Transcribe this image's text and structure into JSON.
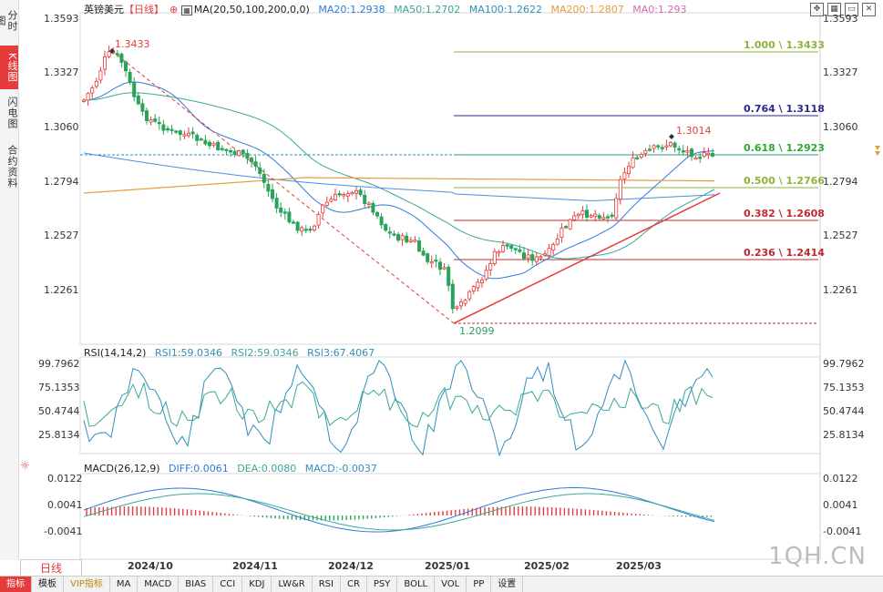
{
  "sidebar": {
    "tabs": [
      {
        "label": "分时图",
        "active": false
      },
      {
        "label": "K线图",
        "active": true
      },
      {
        "label": "闪电图",
        "active": false
      },
      {
        "label": "合约资料",
        "active": false
      }
    ]
  },
  "header": {
    "symbol": "英镑美元",
    "period_tag": "【日线】",
    "ma_spec": "MA(20,50,100,200,0,0)",
    "ma20": "MA20:1.2938",
    "ma50": "MA50:1.2702",
    "ma100": "MA100:1.2622",
    "ma200": "MA200:1.2807",
    "ma0": "MA0:1.293"
  },
  "price_axis": {
    "left": [
      "1.3593",
      "1.3327",
      "1.3060",
      "1.2794",
      "1.2527",
      "1.2261"
    ],
    "right": [
      "1.3593",
      "1.3327",
      "1.3060",
      "1.2794",
      "1.2527",
      "1.2261"
    ]
  },
  "annotations": {
    "high": "1.3433",
    "low": "1.2099",
    "recent_high": "1.3014"
  },
  "fib_levels": [
    {
      "label": "1.000 \\ 1.3433",
      "color": "#8db33a"
    },
    {
      "label": "0.764 \\ 1.3118",
      "color": "#2a2a8a"
    },
    {
      "label": "0.618 \\ 1.2923",
      "color": "#31a831"
    },
    {
      "label": "0.500 \\ 1.2766",
      "color": "#8db33a"
    },
    {
      "label": "0.382 \\ 1.2608",
      "color": "#c0282d"
    },
    {
      "label": "0.236 \\ 1.2414",
      "color": "#c0282d"
    }
  ],
  "rsi": {
    "title": "RSI(14,14,2)",
    "rsi1": "RSI1:59.0346",
    "rsi2": "RSI2:59.0346",
    "rsi3": "RSI3:67.4067",
    "axis": [
      "99.7962",
      "75.1353",
      "50.4744",
      "25.8134"
    ]
  },
  "macd": {
    "title": "MACD(26,12,9)",
    "diff": "DIFF:0.0061",
    "dea": "DEA:0.0080",
    "macd": "MACD:-0.0037",
    "axis": [
      "0.0122",
      "0.0041",
      "-0.0041"
    ]
  },
  "time_axis": [
    "2024/10",
    "2024/11",
    "2024/12",
    "2025/01",
    "2025/02",
    "2025/03"
  ],
  "period_button": "日线",
  "toolbar": [
    "指标",
    "模板",
    "VIP指标",
    "MA",
    "MACD",
    "BIAS",
    "CCI",
    "KDJ",
    "LW&R",
    "RSI",
    "CR",
    "PSY",
    "BOLL",
    "VOL",
    "PP",
    "设置"
  ],
  "watermark": "1QH.CN",
  "colors": {
    "up": "#e63b3b",
    "down": "#2aa35a",
    "ma20": "#2f7bd6",
    "ma50": "#3aa89a",
    "ma100": "#2f7bd6",
    "ma200": "#e89a3c",
    "accent": "#e63b3b"
  },
  "chart_data": {
    "type": "candlestick",
    "ylim": [
      1.2099,
      1.3593
    ],
    "current_price": 1.2923,
    "high": 1.3433,
    "low": 1.2099
  }
}
